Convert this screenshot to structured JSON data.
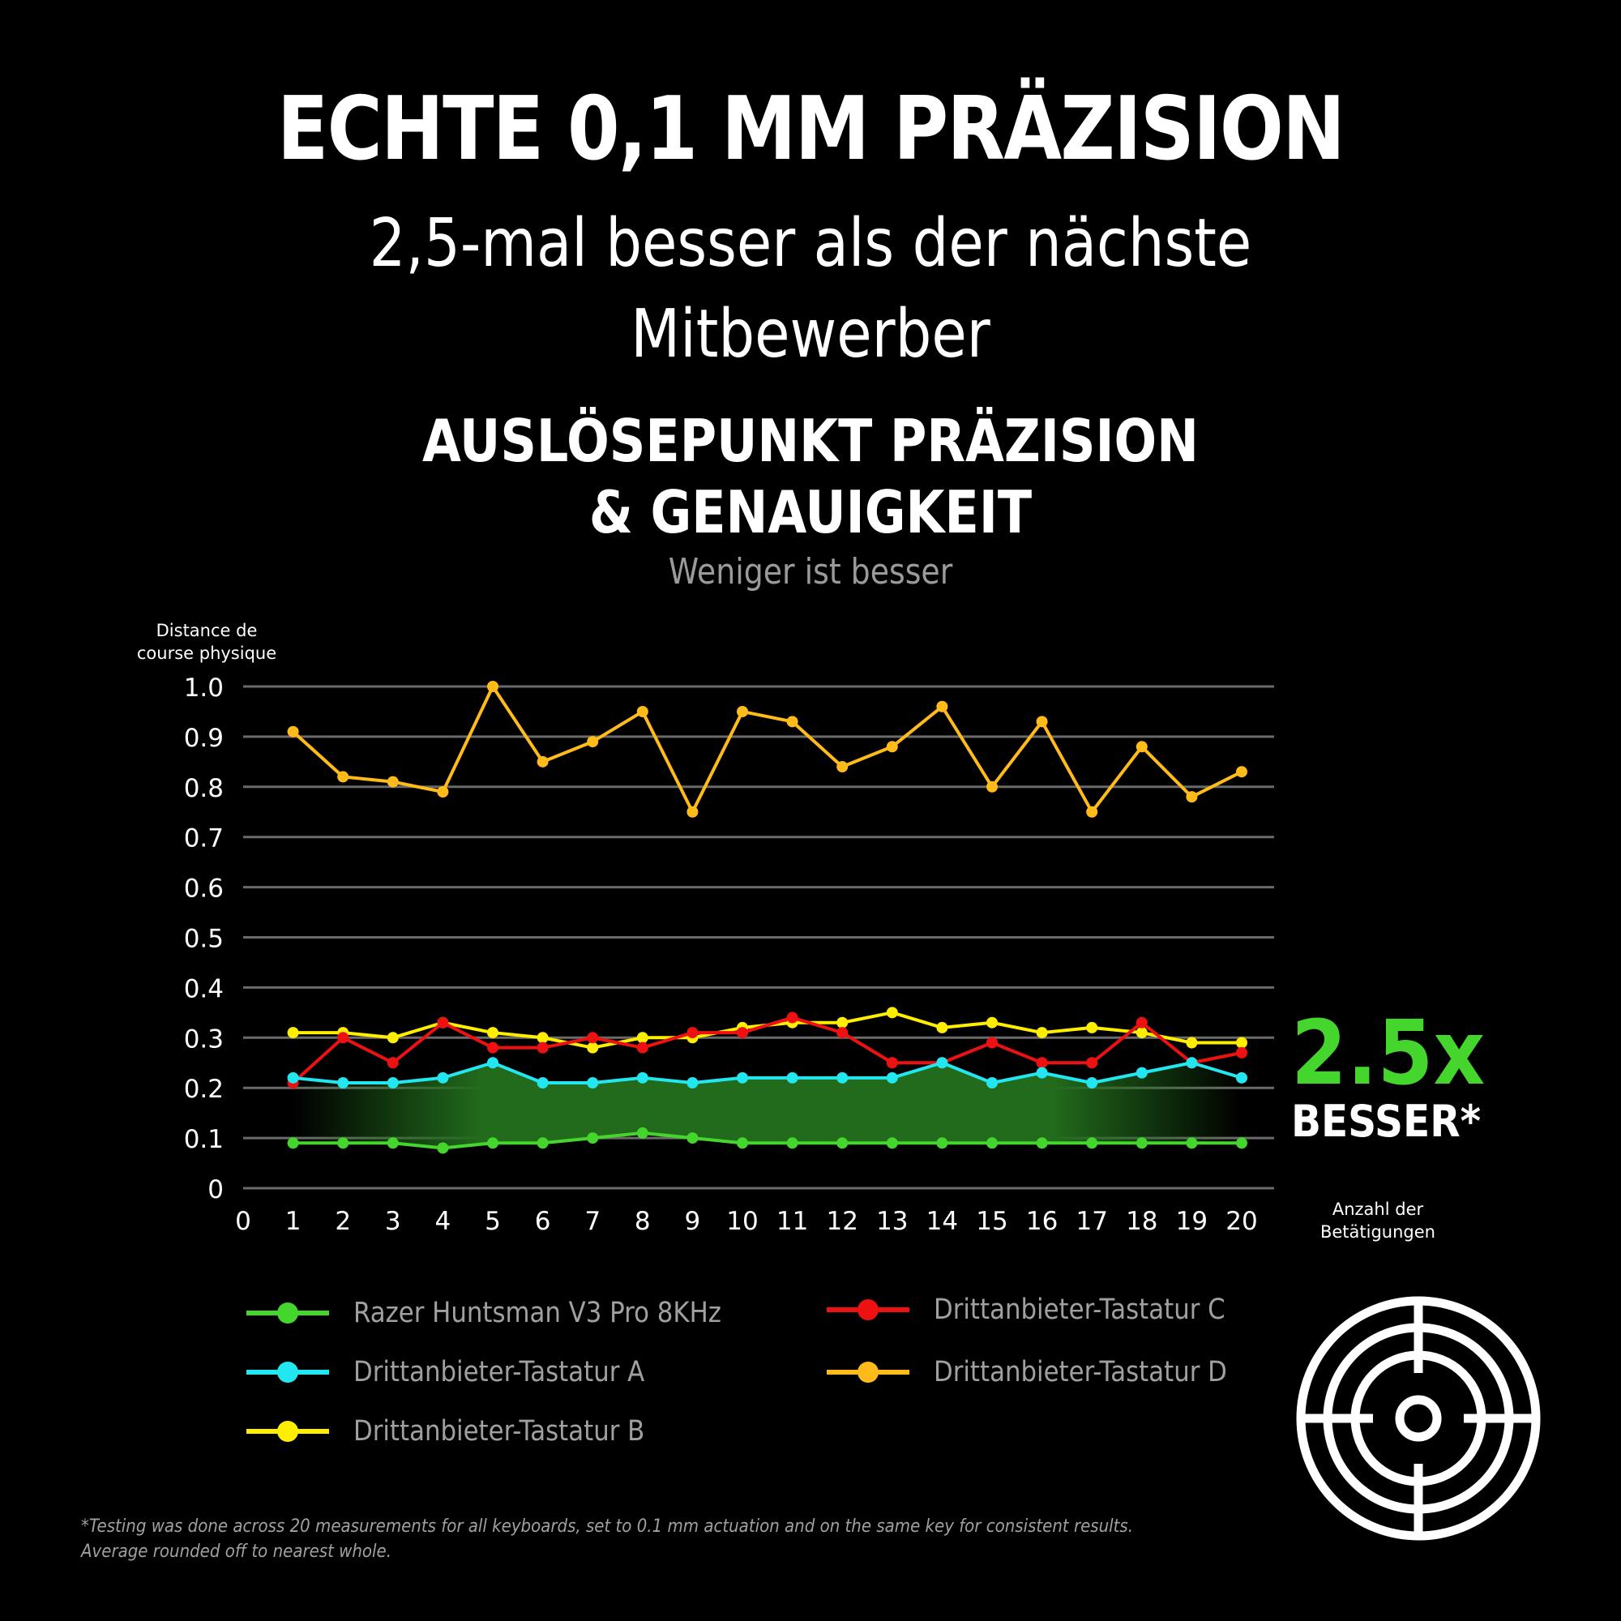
{
  "header": {
    "title": "ECHTE 0,1 MM PRÄZISION",
    "subtitle_line1": "2,5-mal besser als der nächste",
    "subtitle_line2": "Mitbewerber",
    "chart_title_line1": "AUSLÖSEPUNKT PRÄZISION",
    "chart_title_line2": "& GENAUIGKEIT",
    "chart_subtitle": "Weniger ist besser"
  },
  "axes": {
    "y_label_line1": "Distance de",
    "y_label_line2": "course physique",
    "x_label_line1": "Anzahl der",
    "x_label_line2": "Betätigungen",
    "y_ticks": [
      "0",
      "0.1",
      "0.2",
      "0.3",
      "0.4",
      "0.5",
      "0.6",
      "0.7",
      "0.8",
      "0.9",
      "1.0"
    ],
    "x_ticks": [
      "0",
      "1",
      "2",
      "3",
      "4",
      "5",
      "6",
      "7",
      "8",
      "9",
      "10",
      "11",
      "12",
      "13",
      "14",
      "15",
      "16",
      "17",
      "18",
      "19",
      "20"
    ]
  },
  "badge": {
    "value": "2.5x",
    "label": "BESSER*",
    "color": "#44d62c"
  },
  "legend": [
    {
      "label": "Razer Huntsman V3 Pro 8KHz",
      "color": "#44d62c"
    },
    {
      "label": "Drittanbieter-Tastatur A",
      "color": "#22e6f0"
    },
    {
      "label": "Drittanbieter-Tastatur B",
      "color": "#ffee00"
    },
    {
      "label": "Drittanbieter-Tastatur C",
      "color": "#ee1111"
    },
    {
      "label": "Drittanbieter-Tastatur D",
      "color": "#ffbb1a"
    }
  ],
  "footnote": {
    "line1": "*Testing was done across 20 measurements for all keyboards, set to 0.1 mm actuation and on the same key for consistent results.",
    "line2": "Average rounded off to nearest whole."
  },
  "icons": {
    "target": "target-icon"
  },
  "chart_data": {
    "type": "line",
    "title": "AUSLÖSEPUNKT PRÄZISION & GENAUIGKEIT",
    "subtitle": "Weniger ist besser",
    "xlabel": "Anzahl der Betätigungen",
    "ylabel": "Distance de course physique",
    "x": [
      1,
      2,
      3,
      4,
      5,
      6,
      7,
      8,
      9,
      10,
      11,
      12,
      13,
      14,
      15,
      16,
      17,
      18,
      19,
      20
    ],
    "xlim": [
      0,
      20
    ],
    "ylim": [
      0,
      1.0
    ],
    "grid": true,
    "legend_position": "bottom",
    "series": [
      {
        "name": "Razer Huntsman V3 Pro 8KHz",
        "color": "#44d62c",
        "values": [
          0.09,
          0.09,
          0.09,
          0.08,
          0.09,
          0.09,
          0.1,
          0.11,
          0.1,
          0.09,
          0.09,
          0.09,
          0.09,
          0.09,
          0.09,
          0.09,
          0.09,
          0.09,
          0.09,
          0.09
        ]
      },
      {
        "name": "Drittanbieter-Tastatur A",
        "color": "#22e6f0",
        "values": [
          0.22,
          0.21,
          0.21,
          0.22,
          0.25,
          0.21,
          0.21,
          0.22,
          0.21,
          0.22,
          0.22,
          0.22,
          0.22,
          0.25,
          0.21,
          0.23,
          0.21,
          0.23,
          0.25,
          0.22
        ]
      },
      {
        "name": "Drittanbieter-Tastatur B",
        "color": "#ffee00",
        "values": [
          0.31,
          0.31,
          0.3,
          0.33,
          0.31,
          0.3,
          0.28,
          0.3,
          0.3,
          0.32,
          0.33,
          0.33,
          0.35,
          0.32,
          0.33,
          0.31,
          0.32,
          0.31,
          0.29,
          0.29
        ]
      },
      {
        "name": "Drittanbieter-Tastatur C",
        "color": "#ee1111",
        "values": [
          0.21,
          0.3,
          0.25,
          0.33,
          0.28,
          0.28,
          0.3,
          0.28,
          0.31,
          0.31,
          0.34,
          0.31,
          0.25,
          0.25,
          0.29,
          0.25,
          0.25,
          0.33,
          0.25,
          0.27
        ]
      },
      {
        "name": "Drittanbieter-Tastatur D",
        "color": "#ffbb1a",
        "values": [
          0.91,
          0.82,
          0.81,
          0.79,
          1.0,
          0.85,
          0.89,
          0.95,
          0.75,
          0.95,
          0.93,
          0.84,
          0.88,
          0.96,
          0.8,
          0.93,
          0.75,
          0.88,
          0.78,
          0.83
        ]
      }
    ],
    "annotations": [
      "2.5x BESSER*"
    ],
    "highlight_band": {
      "between": [
        "Razer Huntsman V3 Pro 8KHz",
        "Drittanbieter-Tastatur A"
      ],
      "color": "#226b1c"
    }
  }
}
